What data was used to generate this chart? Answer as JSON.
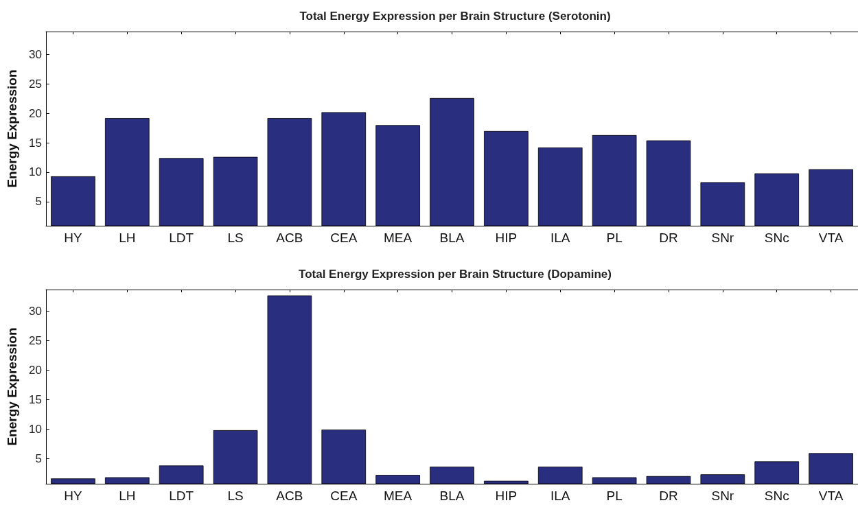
{
  "chart_data": [
    {
      "type": "bar",
      "title": "Total Energy Expression per Brain Structure (Serotonin)",
      "ylabel": "Energy Expression",
      "categories": [
        "HY",
        "LH",
        "LDT",
        "LS",
        "ACB",
        "CEA",
        "MEA",
        "BLA",
        "HIP",
        "ILA",
        "PL",
        "DR",
        "SNr",
        "SNc",
        "VTA"
      ],
      "values": [
        9.3,
        19.2,
        12.4,
        12.6,
        19.2,
        20.2,
        18.0,
        22.6,
        17.0,
        14.2,
        16.3,
        15.4,
        8.3,
        9.8,
        10.5
      ],
      "color": "#2a2e7e",
      "ylim": [
        0.9,
        33.9
      ],
      "yticks": [
        5,
        10,
        15,
        20,
        25,
        30
      ]
    },
    {
      "type": "bar",
      "title": "Total Energy Expression per Brain Structure (Dopamine)",
      "ylabel": "Energy Expression",
      "categories": [
        "HY",
        "LH",
        "LDT",
        "LS",
        "ACB",
        "CEA",
        "MEA",
        "BLA",
        "HIP",
        "ILA",
        "PL",
        "DR",
        "SNr",
        "SNc",
        "VTA"
      ],
      "values": [
        1.6,
        1.8,
        3.8,
        9.8,
        32.7,
        9.9,
        2.2,
        3.6,
        1.2,
        3.6,
        1.8,
        2.0,
        2.3,
        4.5,
        5.9
      ],
      "color": "#2a2e7e",
      "ylim": [
        0.7,
        33.7
      ],
      "yticks": [
        5,
        10,
        15,
        20,
        25,
        30
      ]
    }
  ]
}
